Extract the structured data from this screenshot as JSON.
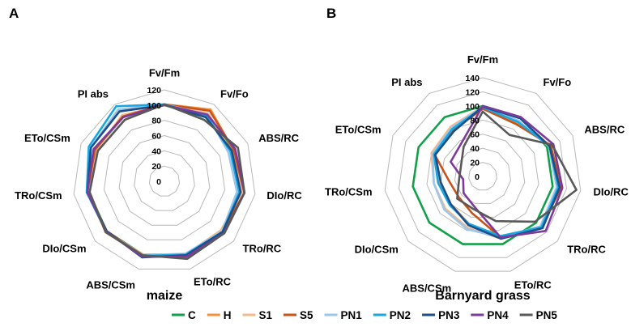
{
  "chart_data": [
    {
      "type": "radar",
      "panel_letter": "A",
      "caption": "maize",
      "axes": [
        "Fv/Fm",
        "Fv/Fo",
        "ABS/RC",
        "DIo/RC",
        "TRo/RC",
        "ETo/RC",
        "ABS/CSm",
        "DIo/CSm",
        "TRo/CSm",
        "ETo/CSm",
        "PI abs"
      ],
      "rlim": [
        0,
        120
      ],
      "ticks": [
        "0",
        "20",
        "40",
        "60",
        "80",
        "100",
        "120"
      ],
      "series": [
        {
          "name": "C",
          "values": [
            100,
            100,
            100,
            100,
            100,
            100,
            100,
            100,
            100,
            100,
            100
          ]
        },
        {
          "name": "H",
          "values": [
            101,
            112,
            99,
            104,
            100,
            101,
            102,
            102,
            101,
            101,
            100
          ]
        },
        {
          "name": "S1",
          "values": [
            100,
            106,
            96,
            103,
            98,
            100,
            100,
            101,
            100,
            98,
            103
          ]
        },
        {
          "name": "S5",
          "values": [
            101,
            110,
            100,
            106,
            101,
            102,
            101,
            100,
            102,
            100,
            101
          ]
        },
        {
          "name": "PN1",
          "values": [
            101,
            104,
            92,
            96,
            100,
            99,
            101,
            101,
            101,
            106,
            112
          ]
        },
        {
          "name": "PN2",
          "values": [
            101,
            102,
            95,
            99,
            101,
            100,
            102,
            101,
            103,
            109,
            117
          ]
        },
        {
          "name": "PN3",
          "values": [
            100,
            100,
            97,
            101,
            101,
            101,
            104,
            100,
            102,
            106,
            109
          ]
        },
        {
          "name": "PN4",
          "values": [
            100,
            104,
            102,
            106,
            104,
            103,
            103,
            101,
            102,
            102,
            100
          ]
        },
        {
          "name": "PN5",
          "values": [
            101,
            96,
            106,
            106,
            104,
            106,
            101,
            102,
            99,
            96,
            96
          ]
        }
      ]
    },
    {
      "type": "radar",
      "panel_letter": "B",
      "caption": "Barnyard grass",
      "axes": [
        "Fv/Fm",
        "Fv/Fo",
        "ABS/RC",
        "DIo/RC",
        "TRo/RC",
        "ETo/RC",
        "ABS/CSm",
        "DIo/CSm",
        "TRo/CSm",
        "ETo/CSm",
        "PI abs"
      ],
      "rlim": [
        0,
        140
      ],
      "ticks": [
        "0",
        "20",
        "40",
        "60",
        "80",
        "100",
        "120",
        "140"
      ],
      "series": [
        {
          "name": "C",
          "values": [
            100,
            100,
            100,
            100,
            100,
            100,
            100,
            100,
            100,
            100,
            100
          ]
        },
        {
          "name": "H",
          "values": [
            98,
            90,
            105,
            108,
            110,
            90,
            70,
            60,
            62,
            78,
            80
          ]
        },
        {
          "name": "S1",
          "values": [
            99,
            92,
            103,
            106,
            108,
            92,
            76,
            70,
            70,
            80,
            84
          ]
        },
        {
          "name": "S5",
          "values": [
            96,
            88,
            106,
            112,
            110,
            90,
            54,
            45,
            48,
            75,
            78
          ]
        },
        {
          "name": "PN1",
          "values": [
            99,
            94,
            103,
            106,
            108,
            90,
            78,
            72,
            70,
            78,
            82
          ]
        },
        {
          "name": "PN2",
          "values": [
            98,
            92,
            104,
            108,
            110,
            88,
            70,
            62,
            64,
            76,
            80
          ]
        },
        {
          "name": "PN3",
          "values": [
            99,
            98,
            104,
            110,
            112,
            92,
            72,
            60,
            60,
            74,
            76
          ]
        },
        {
          "name": "PN4",
          "values": [
            100,
            100,
            110,
            114,
            118,
            90,
            44,
            36,
            28,
            50,
            56
          ]
        },
        {
          "name": "PN5",
          "values": [
            92,
            70,
            108,
            134,
            98,
            66,
            48,
            48,
            34,
            34,
            50
          ]
        }
      ]
    }
  ],
  "legend": [
    {
      "name": "C",
      "color": "#12a04a"
    },
    {
      "name": "H",
      "color": "#f5913c"
    },
    {
      "name": "S1",
      "color": "#f3b98e"
    },
    {
      "name": "S5",
      "color": "#c8531a"
    },
    {
      "name": "PN1",
      "color": "#9cc6ea"
    },
    {
      "name": "PN2",
      "color": "#19a7e2"
    },
    {
      "name": "PN3",
      "color": "#1a4f8c"
    },
    {
      "name": "PN4",
      "color": "#7d3a9b"
    },
    {
      "name": "PN5",
      "color": "#595959"
    }
  ],
  "grid": true,
  "legend_position": "bottom"
}
